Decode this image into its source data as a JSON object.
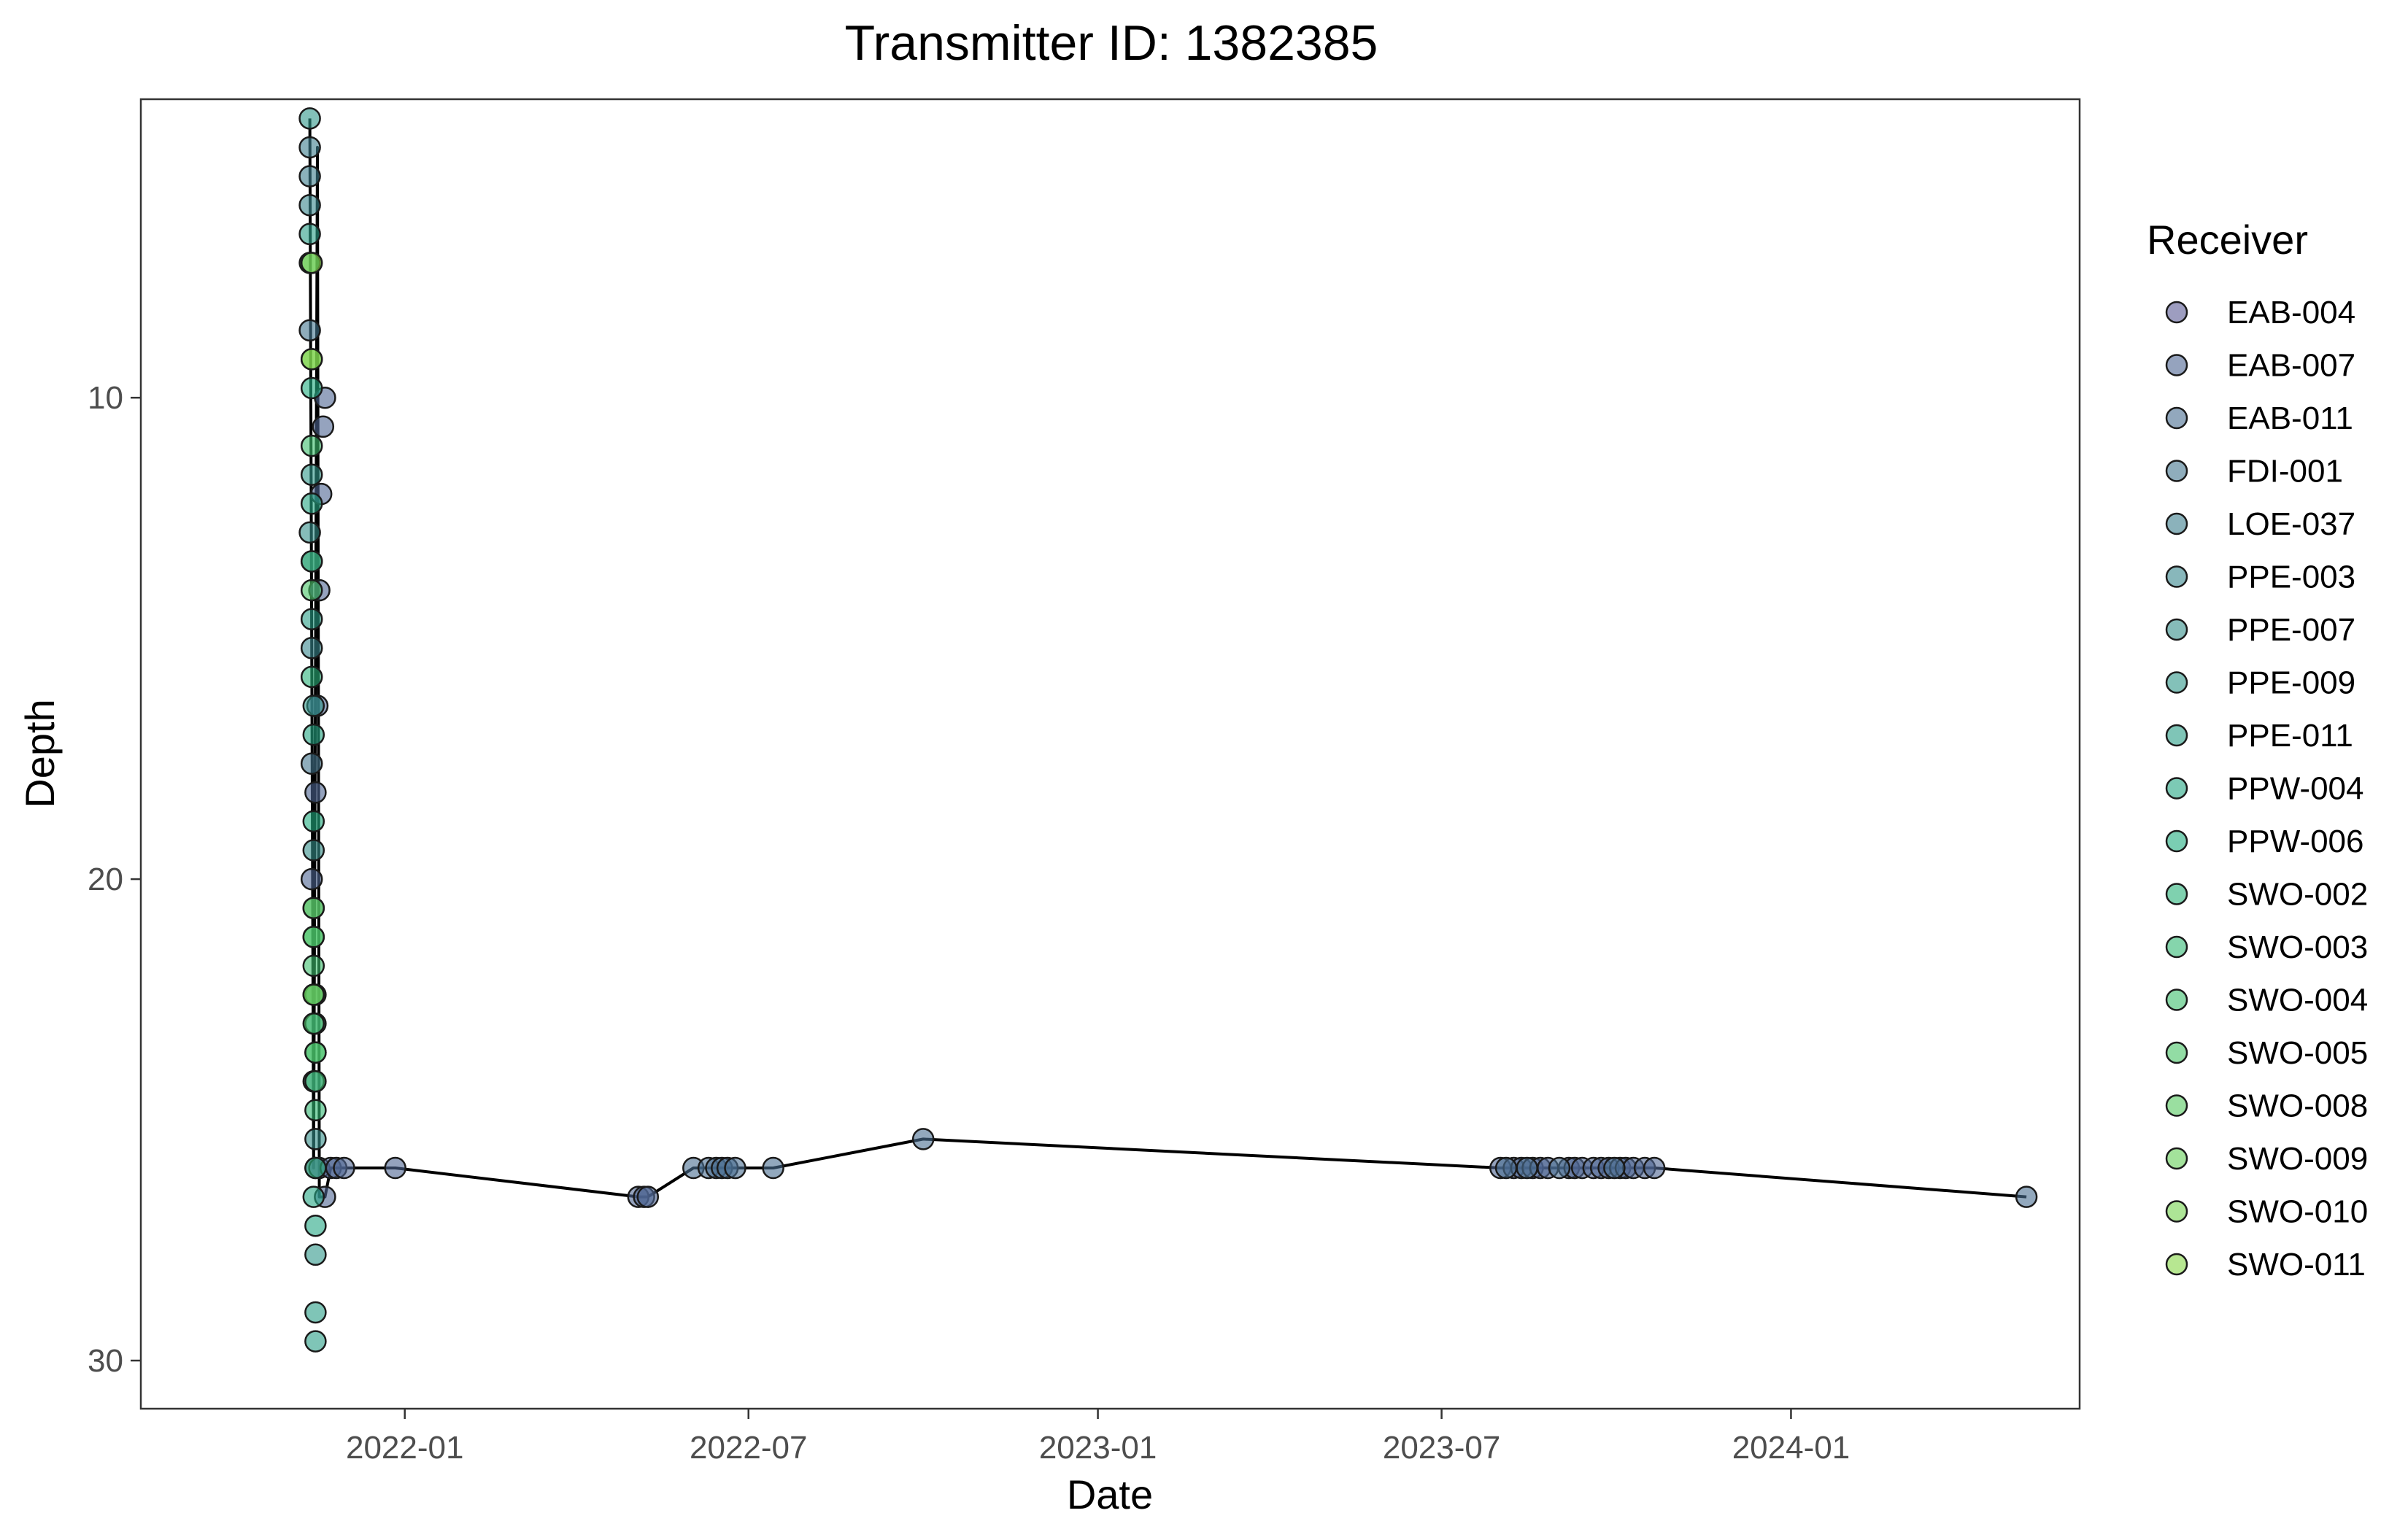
{
  "chart_data": {
    "type": "scatter",
    "title": "Transmitter ID: 1382385",
    "xlabel": "Date",
    "ylabel": "Depth",
    "x_axis_type": "date",
    "xlim": [
      "2021-08-15",
      "2024-06-01"
    ],
    "ylim": [
      3.8,
      31.0
    ],
    "y_reversed": true,
    "x_ticks": [
      "2022-01",
      "2022-07",
      "2023-01",
      "2023-07",
      "2024-01"
    ],
    "y_ticks": [
      10,
      20,
      30
    ],
    "grid": false,
    "legend_title": "Receiver",
    "legend_position": "right",
    "line_color": "#000000",
    "receivers": [
      {
        "name": "EAB-004",
        "color": "#5b5b96"
      },
      {
        "name": "EAB-007",
        "color": "#4f6593"
      },
      {
        "name": "EAB-011",
        "color": "#4a6e91"
      },
      {
        "name": "FDI-001",
        "color": "#45778f"
      },
      {
        "name": "LOE-037",
        "color": "#3e7f8e"
      },
      {
        "name": "PPE-003",
        "color": "#38878d"
      },
      {
        "name": "PPE-007",
        "color": "#358f8b"
      },
      {
        "name": "PPE-009",
        "color": "#30978a"
      },
      {
        "name": "PPE-011",
        "color": "#2a9e87"
      },
      {
        "name": "PPW-004",
        "color": "#25a683"
      },
      {
        "name": "PPW-006",
        "color": "#22ad80"
      },
      {
        "name": "SWO-002",
        "color": "#29b37a"
      },
      {
        "name": "SWO-003",
        "color": "#33b974"
      },
      {
        "name": "SWO-004",
        "color": "#3ebf6e"
      },
      {
        "name": "SWO-005",
        "color": "#4ac468"
      },
      {
        "name": "SWO-008",
        "color": "#57ca60"
      },
      {
        "name": "SWO-009",
        "color": "#66cf58"
      },
      {
        "name": "SWO-010",
        "color": "#76d350"
      },
      {
        "name": "SWO-011",
        "color": "#87d748"
      }
    ],
    "series": [
      {
        "receiver": "EAB-004",
        "points": [
          [
            "2021-11-15",
            26.0
          ],
          [
            "2021-11-17",
            26.0
          ]
        ]
      },
      {
        "receiver": "EAB-007",
        "points": [
          [
            "2021-11-13",
            20.0
          ],
          [
            "2021-11-15",
            18.2
          ],
          [
            "2021-11-16",
            16.4
          ],
          [
            "2021-11-17",
            14.0
          ],
          [
            "2021-11-18",
            12.0
          ],
          [
            "2021-11-19",
            10.6
          ],
          [
            "2021-11-20",
            10.0
          ],
          [
            "2021-11-20",
            26.6
          ],
          [
            "2021-11-23",
            26.0
          ],
          [
            "2021-11-26",
            26.0
          ],
          [
            "2021-11-30",
            26.0
          ],
          [
            "2021-12-27",
            26.0
          ],
          [
            "2022-05-04",
            26.6
          ],
          [
            "2022-05-07",
            26.6
          ],
          [
            "2022-05-09",
            26.6
          ],
          [
            "2023-08-01",
            26.0
          ],
          [
            "2023-08-08",
            26.0
          ],
          [
            "2023-08-12",
            26.0
          ],
          [
            "2023-08-18",
            26.0
          ],
          [
            "2023-08-22",
            26.0
          ],
          [
            "2023-08-26",
            26.0
          ],
          [
            "2023-09-06",
            26.0
          ],
          [
            "2023-09-09",
            26.0
          ],
          [
            "2023-09-13",
            26.0
          ],
          [
            "2023-09-19",
            26.0
          ],
          [
            "2023-09-23",
            26.0
          ],
          [
            "2023-09-27",
            26.0
          ],
          [
            "2023-10-03",
            26.0
          ],
          [
            "2023-10-06",
            26.0
          ],
          [
            "2023-10-10",
            26.0
          ],
          [
            "2023-10-16",
            26.0
          ],
          [
            "2023-10-21",
            26.0
          ]
        ]
      },
      {
        "receiver": "EAB-011",
        "points": [
          [
            "2022-06-02",
            26.0
          ],
          [
            "2022-06-10",
            26.0
          ],
          [
            "2022-06-14",
            26.0
          ],
          [
            "2022-06-17",
            26.0
          ],
          [
            "2022-06-20",
            26.0
          ],
          [
            "2022-06-24",
            26.0
          ],
          [
            "2022-07-14",
            26.0
          ],
          [
            "2022-10-01",
            25.4
          ],
          [
            "2023-08-04",
            26.0
          ],
          [
            "2023-08-15",
            26.0
          ],
          [
            "2023-09-01",
            26.0
          ],
          [
            "2023-09-30",
            26.0
          ],
          [
            "2024-05-04",
            26.6
          ]
        ]
      },
      {
        "receiver": "FDI-001",
        "points": [
          [
            "2021-11-12",
            8.6
          ],
          [
            "2021-11-13",
            17.6
          ]
        ]
      },
      {
        "receiver": "LOE-037",
        "points": [
          [
            "2021-11-12",
            4.8
          ],
          [
            "2021-11-12",
            5.4
          ],
          [
            "2021-11-13",
            13.4
          ],
          [
            "2021-11-15",
            22.4
          ]
        ]
      },
      {
        "receiver": "PPE-003",
        "points": [
          [
            "2021-11-12",
            6.0
          ],
          [
            "2021-11-13",
            15.2
          ],
          [
            "2021-11-14",
            24.2
          ]
        ]
      },
      {
        "receiver": "PPE-007",
        "points": [
          [
            "2021-11-12",
            12.8
          ],
          [
            "2021-11-14",
            19.4
          ],
          [
            "2021-11-15",
            25.4
          ]
        ]
      },
      {
        "receiver": "PPE-009",
        "points": [
          [
            "2021-11-12",
            4.2
          ],
          [
            "2021-11-13",
            11.6
          ],
          [
            "2021-11-14",
            16.4
          ],
          [
            "2021-11-15",
            23.0
          ],
          [
            "2021-11-15",
            27.8
          ]
        ]
      },
      {
        "receiver": "PPE-011",
        "points": [
          [
            "2021-11-12",
            6.6
          ],
          [
            "2021-11-13",
            14.6
          ],
          [
            "2021-11-14",
            20.6
          ],
          [
            "2021-11-15",
            29.0
          ],
          [
            "2021-11-15",
            29.6
          ]
        ]
      },
      {
        "receiver": "PPW-004",
        "points": [
          [
            "2021-11-13",
            12.2
          ],
          [
            "2021-11-14",
            17.0
          ],
          [
            "2021-11-14",
            26.6
          ],
          [
            "2021-11-15",
            27.2
          ]
        ]
      },
      {
        "receiver": "PPW-006",
        "points": [
          [
            "2021-11-13",
            9.8
          ],
          [
            "2021-11-14",
            18.8
          ],
          [
            "2021-11-15",
            23.6
          ]
        ]
      },
      {
        "receiver": "SWO-002",
        "points": [
          [
            "2021-11-12",
            7.2
          ],
          [
            "2021-11-13",
            15.8
          ],
          [
            "2021-11-14",
            21.2
          ],
          [
            "2021-11-15",
            26.0
          ]
        ]
      },
      {
        "receiver": "SWO-003",
        "points": [
          [
            "2021-11-13",
            13.4
          ],
          [
            "2021-11-14",
            22.4
          ],
          [
            "2021-11-15",
            24.8
          ]
        ]
      },
      {
        "receiver": "SWO-004",
        "points": [
          [
            "2021-11-13",
            11.0
          ],
          [
            "2021-11-14",
            21.8
          ],
          [
            "2021-11-15",
            24.2
          ]
        ]
      },
      {
        "receiver": "SWO-005",
        "points": [
          [
            "2021-11-13",
            14.0
          ],
          [
            "2021-11-14",
            23.0
          ]
        ]
      },
      {
        "receiver": "SWO-008",
        "points": [
          [
            "2021-11-14",
            21.2
          ],
          [
            "2021-11-15",
            23.6
          ]
        ]
      },
      {
        "receiver": "SWO-009",
        "points": [
          [
            "2021-11-13",
            9.2
          ],
          [
            "2021-11-14",
            20.6
          ]
        ]
      },
      {
        "receiver": "SWO-010",
        "points": [
          [
            "2021-11-14",
            22.4
          ]
        ]
      },
      {
        "receiver": "SWO-011",
        "points": [
          [
            "2021-11-13",
            7.2
          ],
          [
            "2021-11-13",
            9.2
          ]
        ]
      }
    ],
    "path": [
      [
        "2021-11-12",
        4.2
      ],
      [
        "2021-11-14",
        26.0
      ],
      [
        "2021-11-16",
        4.8
      ],
      [
        "2021-11-17",
        26.6
      ],
      [
        "2021-11-20",
        26.6
      ],
      [
        "2021-11-23",
        26.0
      ],
      [
        "2021-12-27",
        26.0
      ],
      [
        "2022-05-04",
        26.6
      ],
      [
        "2022-05-09",
        26.6
      ],
      [
        "2022-06-02",
        26.0
      ],
      [
        "2022-07-14",
        26.0
      ],
      [
        "2022-10-01",
        25.4
      ],
      [
        "2023-08-01",
        26.0
      ],
      [
        "2023-10-21",
        26.0
      ],
      [
        "2024-05-04",
        26.6
      ]
    ]
  }
}
